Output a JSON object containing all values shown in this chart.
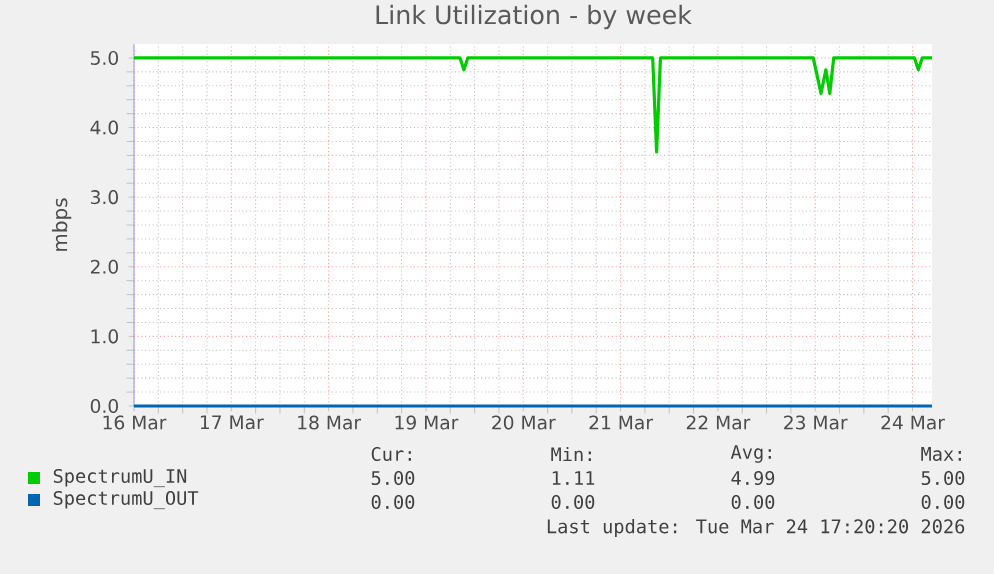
{
  "chart_data": {
    "type": "line",
    "title": "Link Utilization - by week",
    "ylabel": "mbps",
    "xlim": [
      "2026-03-16T00:00",
      "2026-03-24T04:48"
    ],
    "xticks": [
      {
        "value": "2026-03-16",
        "label": "16 Mar"
      },
      {
        "value": "2026-03-17",
        "label": "17 Mar"
      },
      {
        "value": "2026-03-18",
        "label": "18 Mar"
      },
      {
        "value": "2026-03-19",
        "label": "19 Mar"
      },
      {
        "value": "2026-03-20",
        "label": "20 Mar"
      },
      {
        "value": "2026-03-21",
        "label": "21 Mar"
      },
      {
        "value": "2026-03-22",
        "label": "22 Mar"
      },
      {
        "value": "2026-03-23",
        "label": "23 Mar"
      },
      {
        "value": "2026-03-24",
        "label": "24 Mar"
      }
    ],
    "ylim": [
      0,
      5.2
    ],
    "yticks": [
      {
        "value": 0,
        "label": "0.0"
      },
      {
        "value": 1,
        "label": "1.0"
      },
      {
        "value": 2,
        "label": "2.0"
      },
      {
        "value": 3,
        "label": "3.0"
      },
      {
        "value": 4,
        "label": "4.0"
      },
      {
        "value": 5,
        "label": "5.0"
      }
    ],
    "grid": true,
    "legend": "bottom left",
    "marker": "none",
    "line_style": "solid",
    "series": [
      {
        "name": "SpectrumU_IN",
        "color": "#00cc00",
        "x": [
          "2026-03-16T00:00",
          "2026-03-19T08:24",
          "2026-03-19T09:22",
          "2026-03-19T10:19",
          "2026-03-21T07:55",
          "2026-03-21T08:53",
          "2026-03-21T09:50",
          "2026-03-22T23:31",
          "2026-03-23T01:26",
          "2026-03-23T02:38",
          "2026-03-23T03:36",
          "2026-03-23T04:34",
          "2026-03-24T00:29",
          "2026-03-24T01:26",
          "2026-03-24T02:24",
          "2026-03-24T04:48"
        ],
        "values": [
          5.0,
          5.0,
          4.83,
          5.0,
          5.0,
          3.65,
          5.0,
          5.0,
          4.49,
          4.83,
          4.49,
          5.0,
          5.0,
          4.83,
          5.0,
          5.0
        ]
      },
      {
        "name": "SpectrumU_OUT",
        "color": "#0066b3",
        "x": [
          "2026-03-16T00:00",
          "2026-03-24T04:48"
        ],
        "values": [
          0,
          0
        ]
      }
    ],
    "annotations": [
      "Cur:",
      "Min:",
      "Avg:",
      "Max:",
      "5.00",
      "1.11",
      "4.99",
      "5.00",
      "0.00",
      "0.00",
      "0.00",
      "0.00",
      "Last update: Tue Mar 24 17:20:20 2026"
    ]
  }
}
